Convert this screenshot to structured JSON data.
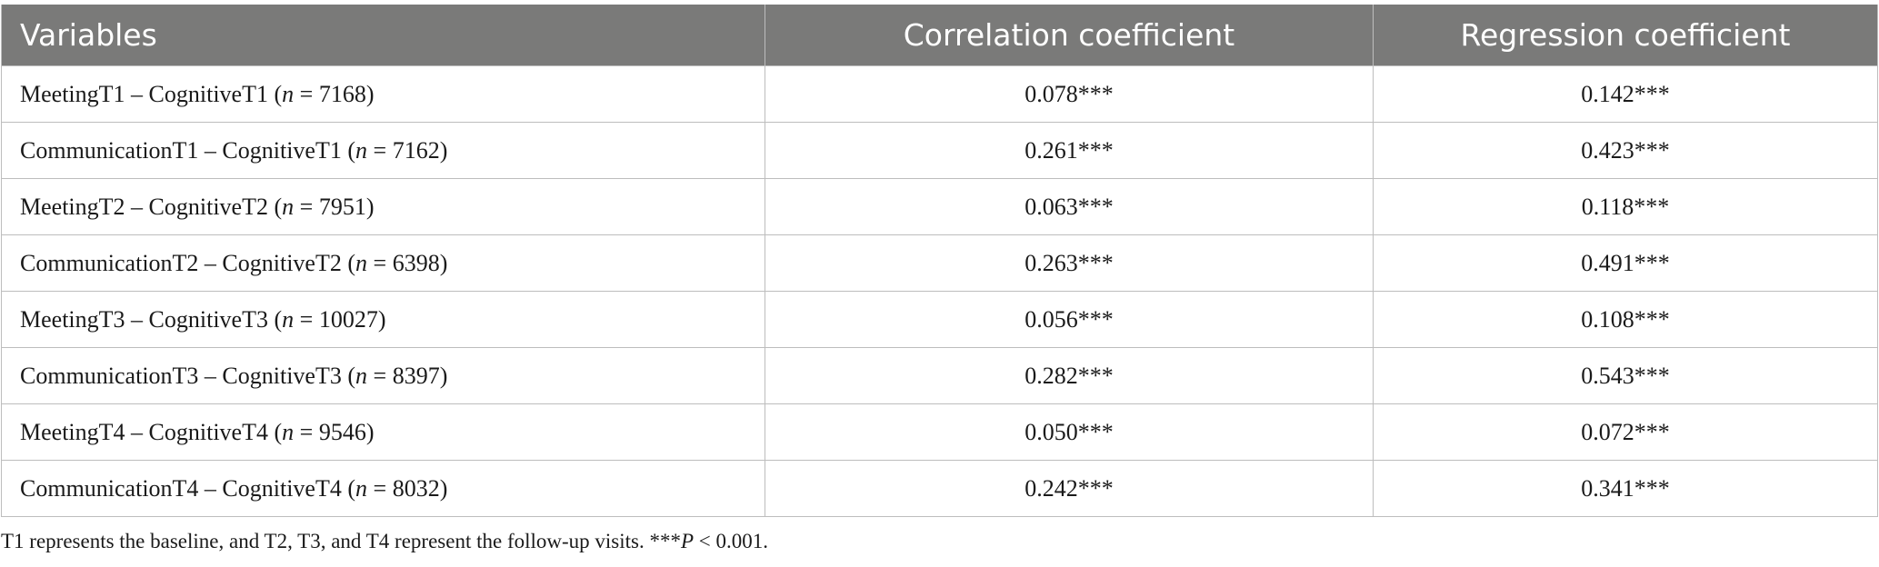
{
  "table": {
    "headers": [
      "Variables",
      "Correlation coefficient",
      "Regression coefficient"
    ],
    "rows": [
      {
        "pair": "MeetingT1 – CognitiveT1",
        "n": "7168",
        "correlation": "0.078***",
        "regression": "0.142***"
      },
      {
        "pair": "CommunicationT1 – CognitiveT1",
        "n": "7162",
        "correlation": "0.261***",
        "regression": "0.423***"
      },
      {
        "pair": "MeetingT2 – CognitiveT2",
        "n": "7951",
        "correlation": "0.063***",
        "regression": "0.118***"
      },
      {
        "pair": "CommunicationT2 – CognitiveT2",
        "n": "6398",
        "correlation": "0.263***",
        "regression": "0.491***"
      },
      {
        "pair": "MeetingT3 – CognitiveT3",
        "n": "10027",
        "correlation": "0.056***",
        "regression": "0.108***"
      },
      {
        "pair": "CommunicationT3 – CognitiveT3",
        "n": "8397",
        "correlation": "0.282***",
        "regression": "0.543***"
      },
      {
        "pair": "MeetingT4 – CognitiveT4",
        "n": "9546",
        "correlation": "0.050***",
        "regression": "0.072***"
      },
      {
        "pair": "CommunicationT4 – CognitiveT4",
        "n": "8032",
        "correlation": "0.242***",
        "regression": "0.341***"
      }
    ]
  },
  "footnote": {
    "text": "T1 represents the baseline, and T2, T3, and T4 represent the follow-up visits. ***",
    "p_symbol": "P",
    "p_rest": " < 0.001."
  }
}
